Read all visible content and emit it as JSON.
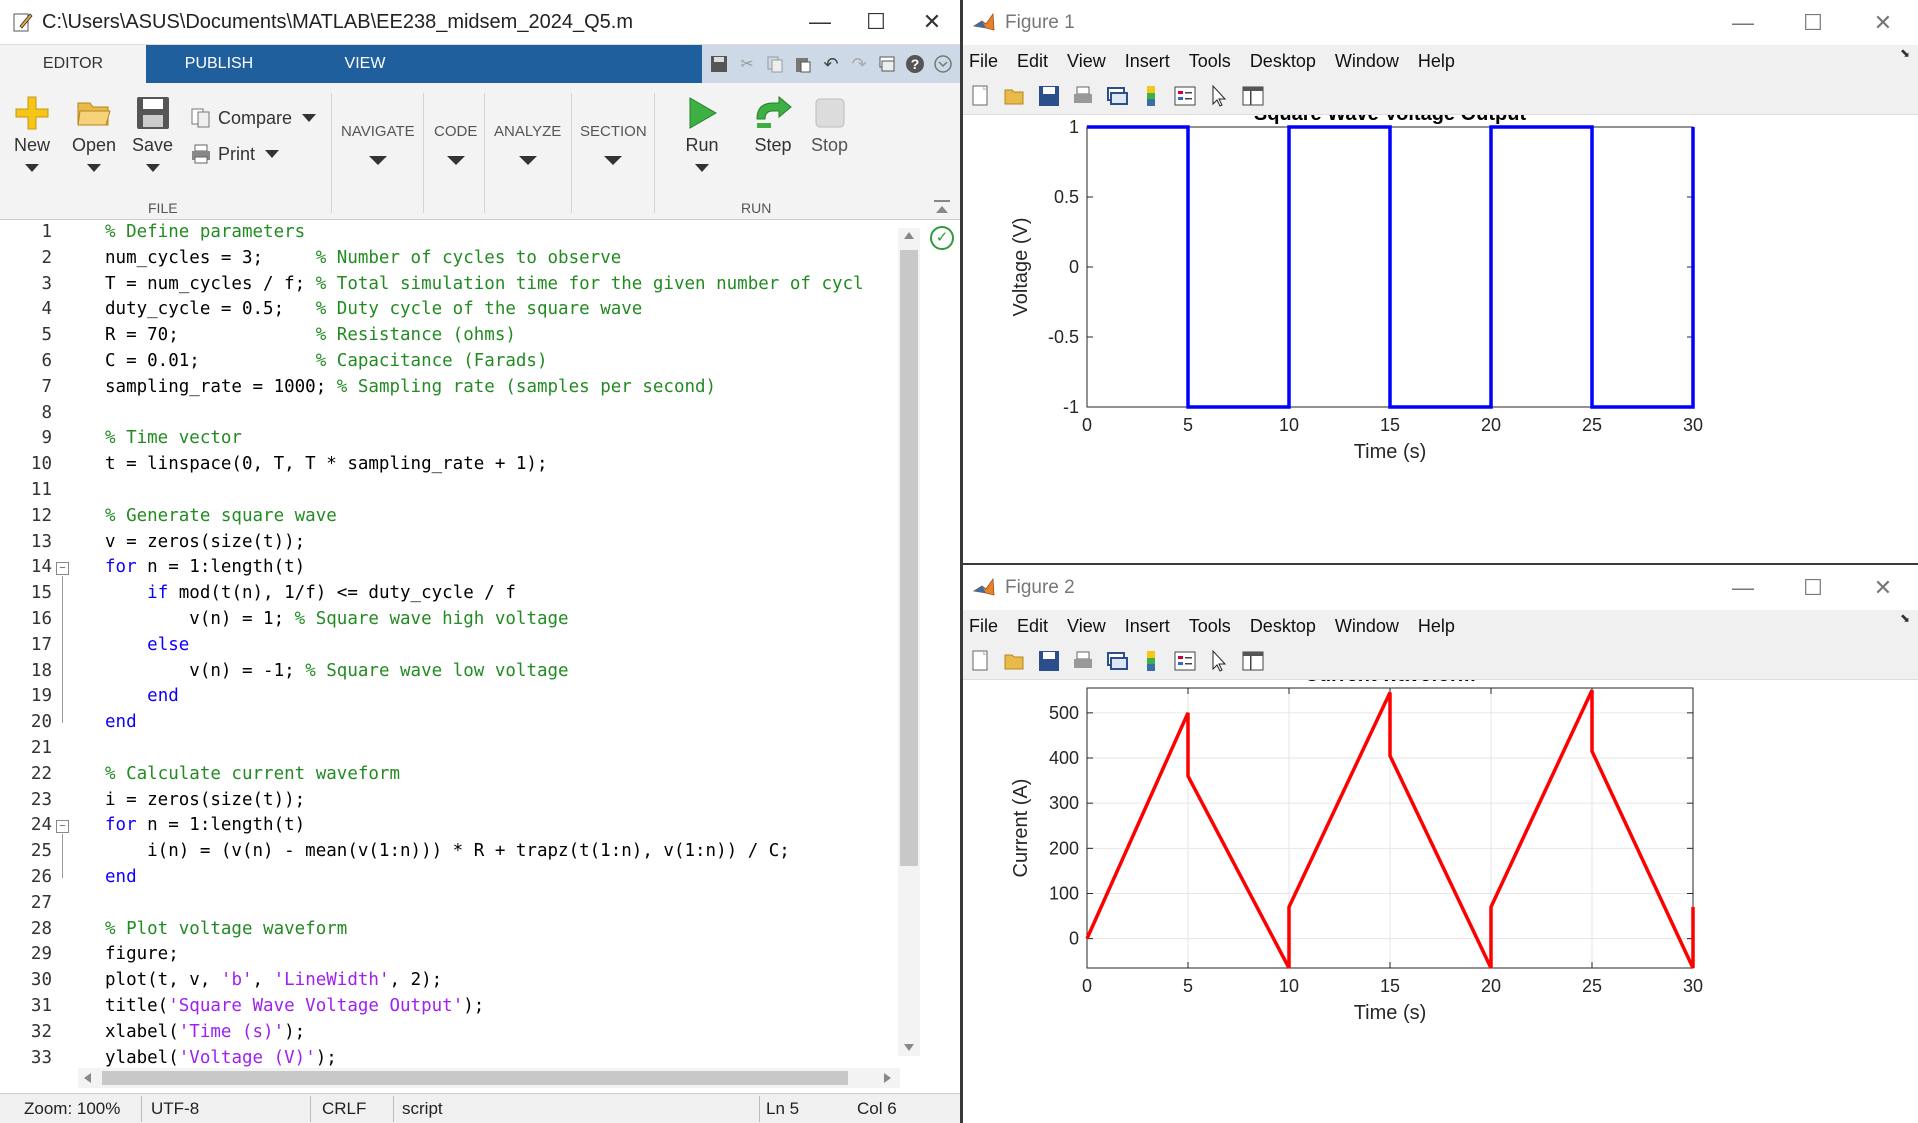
{
  "editor": {
    "title": "C:\\Users\\ASUS\\Documents\\MATLAB\\EE238_midsem_2024_Q5.m",
    "tabs": [
      "EDITOR",
      "PUBLISH",
      "VIEW"
    ],
    "ribbon": {
      "new": "New",
      "open": "Open",
      "save": "Save",
      "compare": "Compare",
      "print": "Print",
      "file_group": "FILE",
      "navigate": "NAVIGATE",
      "code": "CODE",
      "analyze": "ANALYZE",
      "section": "SECTION",
      "run": "Run",
      "step": "Step",
      "stop": "Stop",
      "run_group": "RUN"
    },
    "code_lines": [
      [
        [
          "cm",
          "% Define parameters"
        ]
      ],
      [
        [
          "t",
          "num_cycles = 3;     "
        ],
        [
          "cm",
          "% Number of cycles to observe"
        ]
      ],
      [
        [
          "t",
          "T = num_cycles / f; "
        ],
        [
          "cm",
          "% Total simulation time for the given number of cycl"
        ]
      ],
      [
        [
          "t",
          "duty_cycle = 0.5;   "
        ],
        [
          "cm",
          "% Duty cycle of the square wave"
        ]
      ],
      [
        [
          "t",
          "R = 70;             "
        ],
        [
          "cm",
          "% Resistance (ohms)"
        ]
      ],
      [
        [
          "t",
          "C = 0.01;           "
        ],
        [
          "cm",
          "% Capacitance (Farads)"
        ]
      ],
      [
        [
          "t",
          "sampling_rate = 1000; "
        ],
        [
          "cm",
          "% Sampling rate (samples per second)"
        ]
      ],
      [],
      [
        [
          "cm",
          "% Time vector"
        ]
      ],
      [
        [
          "t",
          "t = linspace(0, T, T * sampling_rate + 1);"
        ]
      ],
      [],
      [
        [
          "cm",
          "% Generate square wave"
        ]
      ],
      [
        [
          "t",
          "v = zeros(size(t));"
        ]
      ],
      [
        [
          "kw",
          "for"
        ],
        [
          "t",
          " n = 1:length(t)"
        ]
      ],
      [
        [
          "t",
          "    "
        ],
        [
          "kw",
          "if"
        ],
        [
          "t",
          " mod(t(n), 1/f) <= duty_cycle / f"
        ]
      ],
      [
        [
          "t",
          "        v(n) = 1; "
        ],
        [
          "cm",
          "% Square wave high voltage"
        ]
      ],
      [
        [
          "t",
          "    "
        ],
        [
          "kw",
          "else"
        ]
      ],
      [
        [
          "t",
          "        v(n) = -1; "
        ],
        [
          "cm",
          "% Square wave low voltage"
        ]
      ],
      [
        [
          "t",
          "    "
        ],
        [
          "kw",
          "end"
        ]
      ],
      [
        [
          "kw",
          "end"
        ]
      ],
      [],
      [
        [
          "cm",
          "% Calculate current waveform"
        ]
      ],
      [
        [
          "t",
          "i = zeros(size(t));"
        ]
      ],
      [
        [
          "kw",
          "for"
        ],
        [
          "t",
          " n = 1:length(t)"
        ]
      ],
      [
        [
          "t",
          "    i(n) = (v(n) - mean(v(1:n))) * R + trapz(t(1:n), v(1:n)) / C;"
        ]
      ],
      [
        [
          "kw",
          "end"
        ]
      ],
      [],
      [
        [
          "cm",
          "% Plot voltage waveform"
        ]
      ],
      [
        [
          "t",
          "figure;"
        ]
      ],
      [
        [
          "t",
          "plot(t, v, "
        ],
        [
          "st",
          "'b'"
        ],
        [
          "t",
          ", "
        ],
        [
          "st",
          "'LineWidth'"
        ],
        [
          "t",
          ", 2);"
        ]
      ],
      [
        [
          "t",
          "title("
        ],
        [
          "st",
          "'Square Wave Voltage Output'"
        ],
        [
          "t",
          ");"
        ]
      ],
      [
        [
          "t",
          "xlabel("
        ],
        [
          "st",
          "'Time (s)'"
        ],
        [
          "t",
          ");"
        ]
      ],
      [
        [
          "t",
          "ylabel("
        ],
        [
          "st",
          "'Voltage (V)'"
        ],
        [
          "t",
          ");"
        ]
      ]
    ],
    "status": {
      "zoom": "Zoom: 100%",
      "encoding": "UTF-8",
      "eol": "CRLF",
      "type": "script",
      "ln": "Ln  5",
      "col": "Col  6"
    }
  },
  "figures": [
    {
      "window_title": "Figure 1",
      "menu": [
        "File",
        "Edit",
        "View",
        "Insert",
        "Tools",
        "Desktop",
        "Window",
        "Help"
      ]
    },
    {
      "window_title": "Figure 2",
      "menu": [
        "File",
        "Edit",
        "View",
        "Insert",
        "Tools",
        "Desktop",
        "Window",
        "Help"
      ]
    }
  ],
  "chart_data": [
    {
      "type": "line",
      "title": "Square Wave Voltage Output",
      "xlabel": "Time (s)",
      "ylabel": "Voltage (V)",
      "xlim": [
        0,
        30
      ],
      "ylim": [
        -1,
        1
      ],
      "xticks": [
        0,
        5,
        10,
        15,
        20,
        25,
        30
      ],
      "yticks": [
        -1,
        -0.5,
        0,
        0.5,
        1
      ],
      "yticklabels": [
        "-1",
        "-0.5",
        "0",
        "0.5",
        "1"
      ],
      "color": "#0000ff",
      "x": [
        0,
        5,
        5,
        10,
        10,
        15,
        15,
        20,
        20,
        25,
        25,
        30,
        30
      ],
      "y": [
        1,
        1,
        -1,
        -1,
        1,
        1,
        -1,
        -1,
        1,
        1,
        -1,
        -1,
        1
      ]
    },
    {
      "type": "line",
      "title": "Current waveform",
      "xlabel": "Time (s)",
      "ylabel": "Current (A)",
      "xlim": [
        0,
        30
      ],
      "ylim": [
        -65,
        555
      ],
      "xticks": [
        0,
        5,
        10,
        15,
        20,
        25,
        30
      ],
      "yticks": [
        0,
        100,
        200,
        300,
        400,
        500
      ],
      "yticklabels": [
        "0",
        "100",
        "200",
        "300",
        "400",
        "500"
      ],
      "grid": true,
      "color": "#ff0000",
      "x": [
        0,
        5,
        5,
        10,
        10,
        15,
        15,
        20,
        20,
        25,
        25,
        30,
        30
      ],
      "y": [
        0,
        500,
        360,
        -65,
        70,
        545,
        405,
        -65,
        70,
        550,
        415,
        -65,
        70
      ]
    }
  ]
}
